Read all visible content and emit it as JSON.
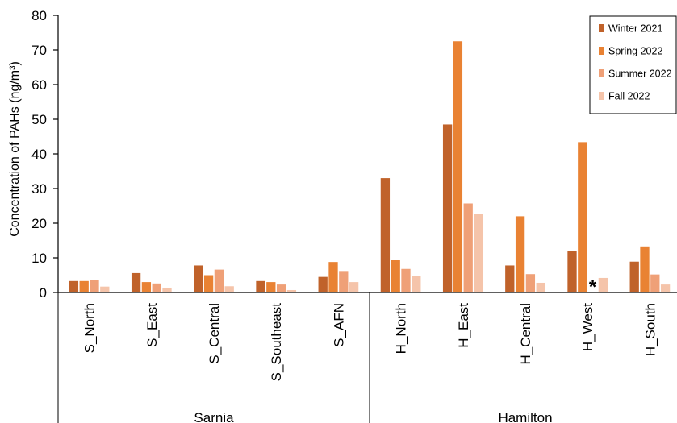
{
  "chart_data": {
    "type": "bar",
    "title": "",
    "xlabel": "",
    "ylabel": "Concentration of PAHs (ng/m³)",
    "ylim": [
      0,
      80
    ],
    "yticks": [
      0,
      10,
      20,
      30,
      40,
      50,
      60,
      70,
      80
    ],
    "grid": false,
    "legend_position": "top-right",
    "categories": [
      "S_North",
      "S_East",
      "S_Central",
      "S_Southeast",
      "S_AFN",
      "H_North",
      "H_East",
      "H_Central",
      "H_West",
      "H_South"
    ],
    "groups": [
      {
        "label": "Sarnia",
        "categories": [
          "S_North",
          "S_East",
          "S_Central",
          "S_Southeast",
          "S_AFN"
        ]
      },
      {
        "label": "Hamilton",
        "categories": [
          "H_North",
          "H_East",
          "H_Central",
          "H_West",
          "H_South"
        ]
      }
    ],
    "series": [
      {
        "name": "Winter 2021",
        "color": "#c0622a",
        "values": [
          3.3,
          5.6,
          7.8,
          3.3,
          4.5,
          33.0,
          48.5,
          7.8,
          11.9,
          8.9
        ]
      },
      {
        "name": "Spring 2022",
        "color": "#e98233",
        "values": [
          3.3,
          3.0,
          5.0,
          3.0,
          8.8,
          9.3,
          72.5,
          22.0,
          43.4,
          13.3
        ]
      },
      {
        "name": "Summer 2022",
        "color": "#efa077",
        "values": [
          3.6,
          2.6,
          6.6,
          2.3,
          6.2,
          6.8,
          25.7,
          5.3,
          null,
          5.2
        ]
      },
      {
        "name": "Fall 2022",
        "color": "#f5c4aa",
        "values": [
          1.7,
          1.4,
          1.8,
          0.7,
          3.0,
          4.8,
          22.6,
          2.8,
          4.2,
          2.3
        ]
      }
    ],
    "annotations": [
      {
        "text": "*",
        "category": "H_West",
        "series": "Summer 2022"
      }
    ]
  }
}
